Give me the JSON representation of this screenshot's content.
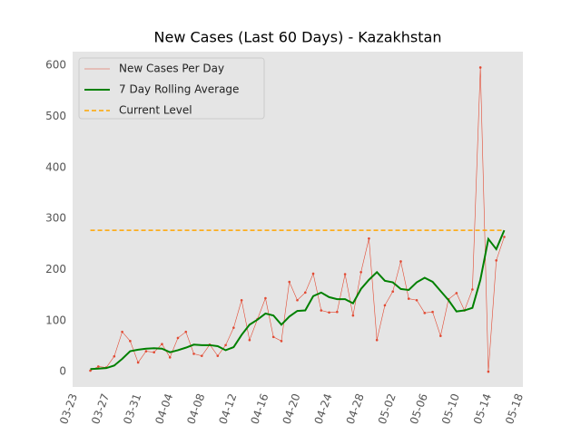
{
  "chart_data": {
    "type": "line",
    "title": "New Cases (Last 60 Days) - Kazakhstan",
    "x": [
      "03-25",
      "03-26",
      "03-27",
      "03-28",
      "03-29",
      "03-30",
      "03-31",
      "04-01",
      "04-02",
      "04-03",
      "04-04",
      "04-05",
      "04-06",
      "04-07",
      "04-08",
      "04-09",
      "04-10",
      "04-11",
      "04-12",
      "04-13",
      "04-14",
      "04-15",
      "04-16",
      "04-17",
      "04-18",
      "04-19",
      "04-20",
      "04-21",
      "04-22",
      "04-23",
      "04-24",
      "04-25",
      "04-26",
      "04-27",
      "04-28",
      "04-29",
      "04-30",
      "05-01",
      "05-02",
      "05-03",
      "05-04",
      "05-05",
      "05-06",
      "05-07",
      "05-08",
      "05-09",
      "05-10",
      "05-11",
      "05-12",
      "05-13",
      "05-14",
      "05-15",
      "05-16"
    ],
    "series": [
      {
        "name": "New Cases Per Day",
        "color": "#e24a33",
        "style": "thin-dots",
        "values": [
          2,
          10,
          8,
          30,
          78,
          60,
          18,
          40,
          38,
          54,
          28,
          66,
          78,
          35,
          31,
          53,
          31,
          52,
          86,
          140,
          62,
          103,
          144,
          68,
          60,
          176,
          140,
          155,
          192,
          120,
          116,
          117,
          191,
          110,
          195,
          261,
          62,
          130,
          157,
          216,
          143,
          140,
          115,
          117,
          70,
          142,
          154,
          120,
          161,
          596,
          0,
          218,
          264
        ]
      },
      {
        "name": "7 Day Rolling Average",
        "color": "#008000",
        "style": "thick",
        "values": [
          5,
          6,
          7,
          12,
          25,
          40,
          43,
          45,
          46,
          45,
          38,
          42,
          47,
          53,
          52,
          52,
          50,
          42,
          48,
          72,
          92,
          102,
          114,
          110,
          92,
          108,
          119,
          120,
          148,
          155,
          146,
          142,
          142,
          134,
          162,
          180,
          195,
          178,
          175,
          162,
          160,
          175,
          184,
          176,
          158,
          140,
          118,
          120,
          125,
          180,
          260,
          240,
          277
        ]
      },
      {
        "name": "Current Level",
        "color": "#ffa500",
        "style": "dashed",
        "value": 277
      }
    ],
    "xlim": [
      "03-23",
      "05-18"
    ],
    "xticks": [
      "03-23",
      "03-27",
      "03-31",
      "04-04",
      "04-08",
      "04-12",
      "04-16",
      "04-20",
      "04-24",
      "04-28",
      "05-02",
      "05-06",
      "05-10",
      "05-14",
      "05-18"
    ],
    "ylim": [
      -30,
      627
    ],
    "yticks": [
      0,
      100,
      200,
      300,
      400,
      500,
      600
    ],
    "grid": true,
    "legend": "upper-left"
  }
}
